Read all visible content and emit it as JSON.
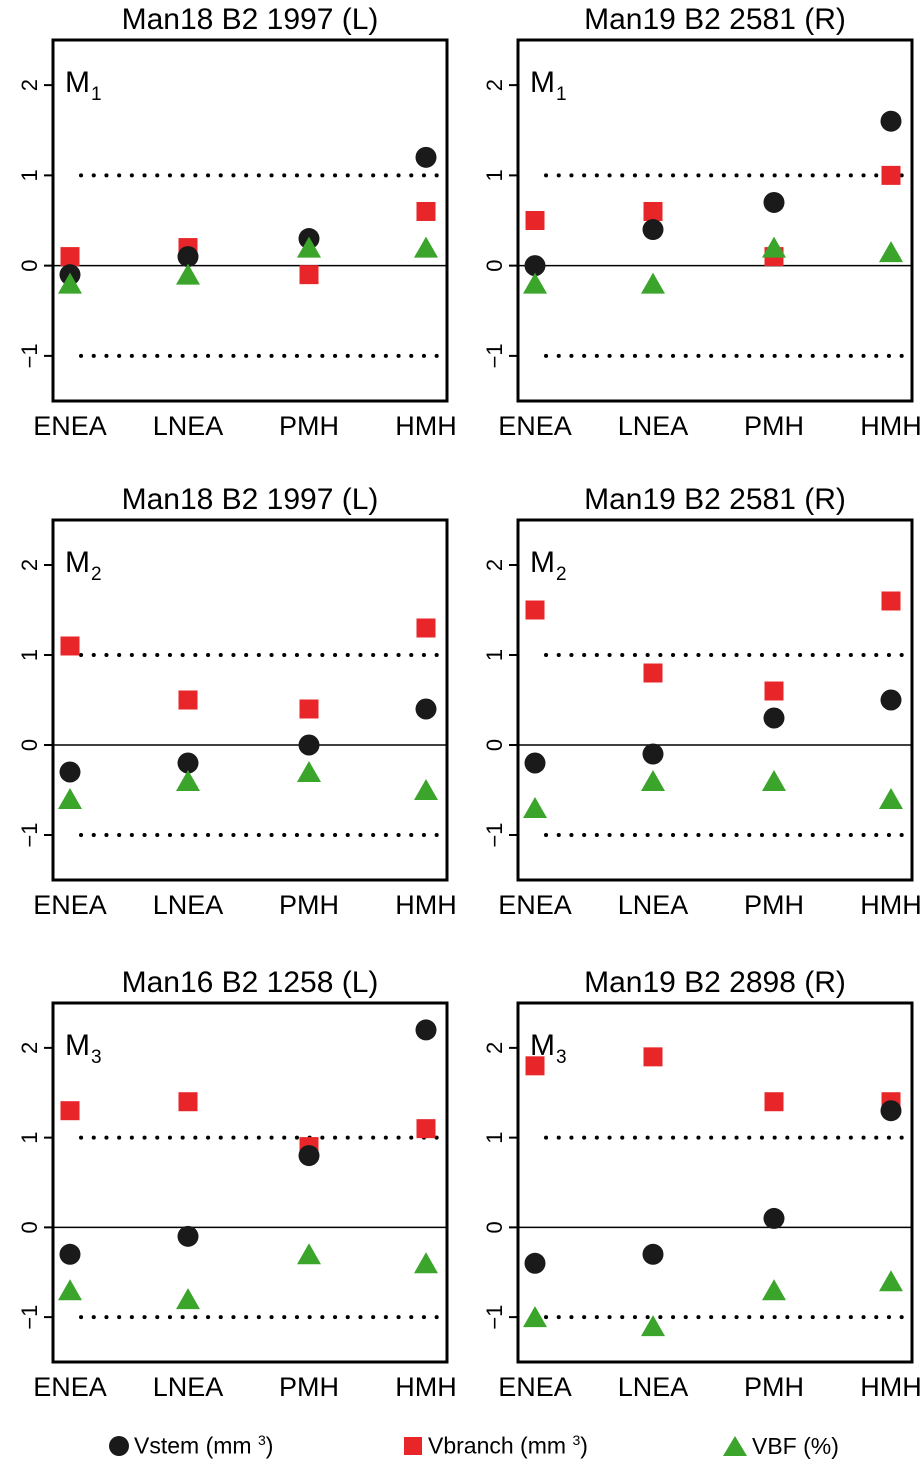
{
  "chart_data": [
    {
      "type": "scatter",
      "title": "Man18 B2 1997 (L)",
      "panel_label": "M",
      "panel_sub": "1",
      "categories": [
        "ENEA",
        "LNEA",
        "PMH",
        "HMH"
      ],
      "ylim": [
        -1.5,
        2.5
      ],
      "yticks": [
        "-1",
        "0",
        "1",
        "2"
      ],
      "reference_lines": {
        "solid": 0,
        "dotted": [
          1,
          -1
        ]
      },
      "series": [
        {
          "name": "Vstem (mm 3)",
          "marker": "circle",
          "values": [
            -0.1,
            0.1,
            0.3,
            1.2
          ]
        },
        {
          "name": "Vbranch (mm 3)",
          "marker": "square",
          "values": [
            0.1,
            0.2,
            -0.1,
            0.6
          ]
        },
        {
          "name": "VBF (%)",
          "marker": "triangle",
          "values": [
            -0.2,
            -0.1,
            0.2,
            0.2
          ]
        }
      ]
    },
    {
      "type": "scatter",
      "title": "Man19 B2 2581 (R)",
      "panel_label": "M",
      "panel_sub": "1",
      "categories": [
        "ENEA",
        "LNEA",
        "PMH",
        "HMH"
      ],
      "ylim": [
        -1.5,
        2.5
      ],
      "yticks": [
        "-1",
        "0",
        "1",
        "2"
      ],
      "reference_lines": {
        "solid": 0,
        "dotted": [
          1,
          -1
        ]
      },
      "series": [
        {
          "name": "Vstem (mm 3)",
          "marker": "circle",
          "values": [
            0.0,
            0.4,
            0.7,
            1.6
          ]
        },
        {
          "name": "Vbranch (mm 3)",
          "marker": "square",
          "values": [
            0.5,
            0.6,
            0.1,
            1.0
          ]
        },
        {
          "name": "VBF (%)",
          "marker": "triangle",
          "values": [
            -0.2,
            -0.2,
            0.2,
            0.15
          ]
        }
      ]
    },
    {
      "type": "scatter",
      "title": "Man18 B2 1997 (L)",
      "panel_label": "M",
      "panel_sub": "2",
      "categories": [
        "ENEA",
        "LNEA",
        "PMH",
        "HMH"
      ],
      "ylim": [
        -1.5,
        2.5
      ],
      "yticks": [
        "-1",
        "0",
        "1",
        "2"
      ],
      "reference_lines": {
        "solid": 0,
        "dotted": [
          1,
          -1
        ]
      },
      "series": [
        {
          "name": "Vstem (mm 3)",
          "marker": "circle",
          "values": [
            -0.3,
            -0.2,
            0.0,
            0.4
          ]
        },
        {
          "name": "Vbranch (mm 3)",
          "marker": "square",
          "values": [
            1.1,
            0.5,
            0.4,
            1.3
          ]
        },
        {
          "name": "VBF (%)",
          "marker": "triangle",
          "values": [
            -0.6,
            -0.4,
            -0.3,
            -0.5
          ]
        }
      ]
    },
    {
      "type": "scatter",
      "title": "Man19 B2 2581 (R)",
      "panel_label": "M",
      "panel_sub": "2",
      "categories": [
        "ENEA",
        "LNEA",
        "PMH",
        "HMH"
      ],
      "ylim": [
        -1.5,
        2.5
      ],
      "yticks": [
        "-1",
        "0",
        "1",
        "2"
      ],
      "reference_lines": {
        "solid": 0,
        "dotted": [
          1,
          -1
        ]
      },
      "series": [
        {
          "name": "Vstem (mm 3)",
          "marker": "circle",
          "values": [
            -0.2,
            -0.1,
            0.3,
            0.5
          ]
        },
        {
          "name": "Vbranch (mm 3)",
          "marker": "square",
          "values": [
            1.5,
            0.8,
            0.6,
            1.6
          ]
        },
        {
          "name": "VBF (%)",
          "marker": "triangle",
          "values": [
            -0.7,
            -0.4,
            -0.4,
            -0.6
          ]
        }
      ]
    },
    {
      "type": "scatter",
      "title": "Man16 B2 1258 (L)",
      "panel_label": "M",
      "panel_sub": "3",
      "categories": [
        "ENEA",
        "LNEA",
        "PMH",
        "HMH"
      ],
      "ylim": [
        -1.5,
        2.5
      ],
      "yticks": [
        "-1",
        "0",
        "1",
        "2"
      ],
      "reference_lines": {
        "solid": 0,
        "dotted": [
          1,
          -1
        ]
      },
      "series": [
        {
          "name": "Vstem (mm 3)",
          "marker": "circle",
          "values": [
            -0.3,
            -0.1,
            0.8,
            2.2
          ]
        },
        {
          "name": "Vbranch (mm 3)",
          "marker": "square",
          "values": [
            1.3,
            1.4,
            0.9,
            1.1
          ]
        },
        {
          "name": "VBF (%)",
          "marker": "triangle",
          "values": [
            -0.7,
            -0.8,
            -0.3,
            -0.4
          ]
        }
      ]
    },
    {
      "type": "scatter",
      "title": "Man19 B2 2898 (R)",
      "panel_label": "M",
      "panel_sub": "3",
      "categories": [
        "ENEA",
        "LNEA",
        "PMH",
        "HMH"
      ],
      "ylim": [
        -1.5,
        2.5
      ],
      "yticks": [
        "-1",
        "0",
        "1",
        "2"
      ],
      "reference_lines": {
        "solid": 0,
        "dotted": [
          1,
          -1
        ]
      },
      "series": [
        {
          "name": "Vstem (mm 3)",
          "marker": "circle",
          "values": [
            -0.4,
            -0.3,
            0.1,
            1.3
          ]
        },
        {
          "name": "Vbranch (mm 3)",
          "marker": "square",
          "values": [
            1.8,
            1.9,
            1.4,
            1.4
          ]
        },
        {
          "name": "VBF (%)",
          "marker": "triangle",
          "values": [
            -1.0,
            -1.1,
            -0.7,
            -0.6
          ]
        }
      ]
    }
  ],
  "legend": {
    "items": [
      {
        "name": "Vstem (mm",
        "sup": "3",
        "suffix": ")",
        "marker": "circle"
      },
      {
        "name": "Vbranch (mm",
        "sup": "3",
        "suffix": ")",
        "marker": "square"
      },
      {
        "name": "VBF (%)",
        "sup": "",
        "suffix": "",
        "marker": "triangle"
      }
    ]
  },
  "colors": {
    "circle": "#1a1a1a",
    "square": "#e8262a",
    "triangle": "#3aa52a",
    "axis": "#000000"
  }
}
